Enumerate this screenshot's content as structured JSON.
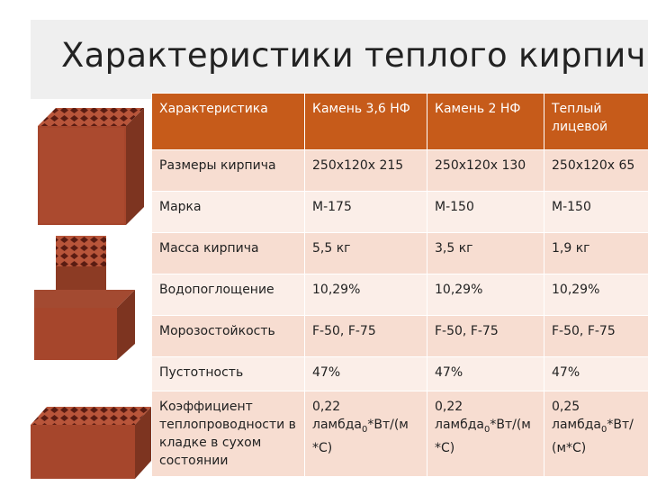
{
  "slide": {
    "title": "Характеристики теплого кирпича"
  },
  "table": {
    "headers": [
      "Характеристика",
      "Камень 3,6 НФ",
      "Камень 2 НФ",
      "Теплый лицевой"
    ],
    "rows": [
      [
        "Размеры кирпича",
        "250х120х 215",
        "250х120х 130",
        "250х120х 65"
      ],
      [
        "Марка",
        "М-175",
        "М-150",
        "М-150"
      ],
      [
        "Масса кирпича",
        "5,5 кг",
        "3,5 кг",
        "1,9 кг"
      ],
      [
        "Водопоглощение",
        "10,29%",
        "10,29%",
        "10,29%"
      ],
      [
        "Морозостойкость",
        "F-50, F-75",
        "F-50, F-75",
        "F-50, F-75"
      ],
      [
        "Пустотность",
        "47%",
        "47%",
        "47%"
      ],
      [
        "Коэффициент теплопроводности в кладке в сухом состоянии",
        "0,22",
        "0,22",
        "0,25"
      ]
    ],
    "conductivity_units": [
      "ламбда",
      "0",
      "*Вт/(м *С)",
      "ламбда",
      "0",
      "*Вт/(м *С)",
      "ламбда",
      "0",
      "*Вт/ (м*С)"
    ]
  },
  "colors": {
    "header_bg": "#c65b1a",
    "row_odd": "#f7ddd1",
    "row_even": "#fbeee8",
    "brick": "#a6462c"
  },
  "images": [
    "brick-3.6nf-image",
    "brick-2nf-image",
    "brick-facing-image"
  ]
}
